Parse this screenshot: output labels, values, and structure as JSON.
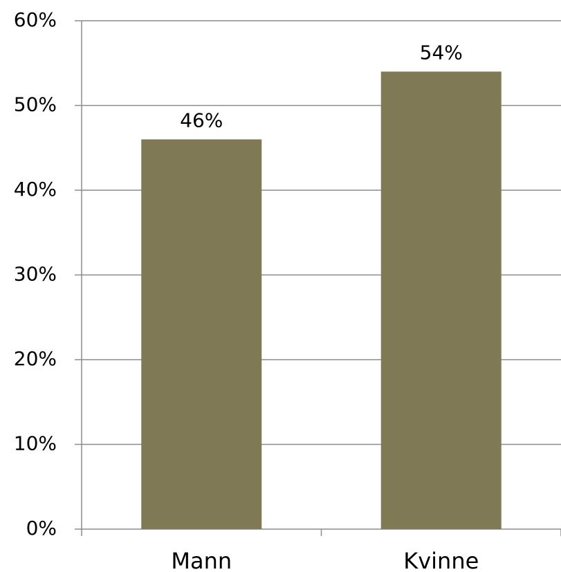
{
  "chart_data": {
    "type": "bar",
    "title": "",
    "xlabel": "",
    "ylabel": "",
    "categories": [
      "Mann",
      "Kvinne"
    ],
    "values": [
      0.46,
      0.54
    ],
    "data_labels": [
      "46%",
      "54%"
    ],
    "ylim": [
      0,
      0.6
    ],
    "yticks": [
      0,
      0.1,
      0.2,
      0.3,
      0.4,
      0.5,
      0.6
    ],
    "ytick_labels": [
      "0%",
      "10%",
      "20%",
      "30%",
      "40%",
      "50%",
      "60%"
    ],
    "grid": true,
    "legend": "none",
    "colors": {
      "bar": "#7f7a55",
      "grid": "#8c8c8c",
      "axis": "#8c8c8c"
    }
  }
}
